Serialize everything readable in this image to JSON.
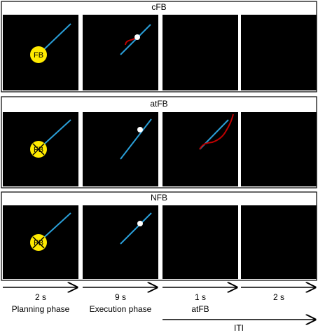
{
  "panels": [
    {
      "title": "cFB",
      "icon": "FB"
    },
    {
      "title": "atFB",
      "icon": "FB"
    },
    {
      "title": "NFB",
      "icon": "FB"
    }
  ],
  "timeline": [
    {
      "duration": "2 s",
      "label": "Planning phase"
    },
    {
      "duration": "9 s",
      "label": "Execution phase"
    },
    {
      "duration": "1 s",
      "label": "atFB"
    },
    {
      "duration": "2 s"
    }
  ],
  "iti": "ITI"
}
